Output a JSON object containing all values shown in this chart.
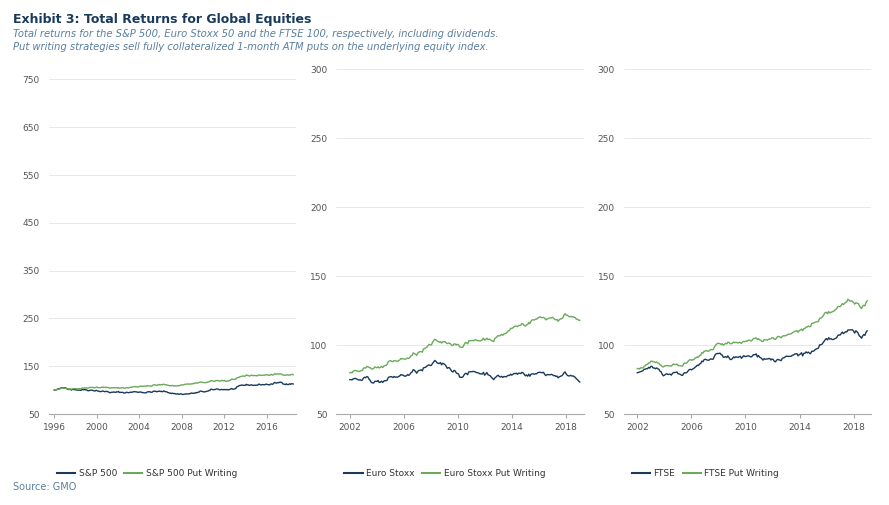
{
  "title": "Exhibit 3: Total Returns for Global Equities",
  "subtitle1": "Total returns for the S&P 500, Euro Stoxx 50 and the FTSE 100, respectively, including dividends.",
  "subtitle2": "Put writing strategies sell fully collateralized 1-month ATM puts on the underlying equity index.",
  "source": "Source: GMO",
  "title_color": "#1a3a5c",
  "subtitle_color": "#5a7fa0",
  "source_color": "#5a7fa0",
  "dark_blue": "#1a3a5c",
  "green": "#6aaa5a",
  "panel1": {
    "xlabel_ticks": [
      1996,
      2000,
      2004,
      2008,
      2012,
      2016
    ],
    "ylim": [
      50,
      800
    ],
    "yticks": [
      50,
      150,
      250,
      350,
      450,
      550,
      650,
      750
    ],
    "legend": [
      "S&P 500",
      "S&P 500 Put Writing"
    ],
    "start_year": 1995.5,
    "end_year": 2018.5
  },
  "panel2": {
    "xlabel_ticks": [
      2002,
      2006,
      2010,
      2014,
      2018
    ],
    "ylim": [
      50,
      310
    ],
    "yticks": [
      50,
      100,
      150,
      200,
      250,
      300
    ],
    "legend": [
      "Euro Stoxx",
      "Euro Stoxx Put Writing"
    ],
    "start_year": 2001,
    "end_year": 2019
  },
  "panel3": {
    "xlabel_ticks": [
      2002,
      2006,
      2010,
      2014,
      2018
    ],
    "ylim": [
      50,
      310
    ],
    "yticks": [
      50,
      100,
      150,
      200,
      250,
      300
    ],
    "legend": [
      "FTSE",
      "FTSE Put Writing"
    ],
    "start_year": 2001,
    "end_year": 2019
  },
  "background_color": "#ffffff",
  "grid_color": "#e0e0e0"
}
